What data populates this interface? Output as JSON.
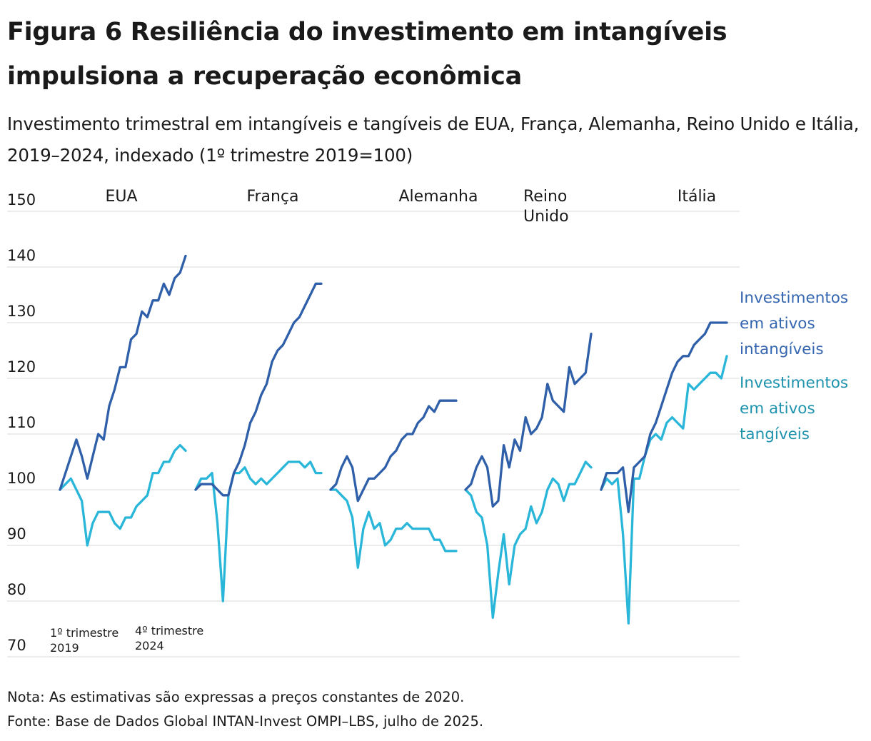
{
  "title": "Figura 6 Resiliência do investimento em intangíveis impulsiona a recuperação econômica",
  "subtitle": "Investimento trimestral em intangíveis e tangíveis de EUA, França, Alemanha, Reino Unido e Itália, 2019–2024, indexado (1º trimestre 2019=100)",
  "notes": {
    "note": "Nota: As estimativas são expressas a preços constantes de 2020.",
    "source": "Fonte: Base de Dados Global INTAN-Invest OMPI–LBS, julho de 2025."
  },
  "colors": {
    "intangible": "#2e5fa8",
    "tangible": "#29b6d9",
    "intangible_label": "#3566b0",
    "tangible_label": "#1f93ae",
    "grid": "#d9d9d9"
  },
  "chart_data": {
    "type": "line",
    "title": "Figura 6 Resiliência do investimento em intangíveis impulsiona a recuperação econômica",
    "ylabel": "",
    "xlabel": "",
    "ylim": [
      70,
      150
    ],
    "yticks": [
      70,
      80,
      90,
      100,
      110,
      120,
      130,
      140,
      150
    ],
    "x_start_label": [
      "1º trimestre",
      "2019"
    ],
    "x_end_label": [
      "4º trimestre",
      "2024"
    ],
    "legend": {
      "intangible": [
        "Investimentos",
        "em ativos",
        "intangíveis"
      ],
      "tangible": [
        "Investimentos",
        "em ativos",
        "tangíveis"
      ]
    },
    "panels": [
      {
        "name": "EUA",
        "label_lines": [
          "EUA"
        ],
        "series": [
          {
            "name": "Investimentos em ativos intangíveis",
            "key": "intangible",
            "values": [
              100,
              103,
              106,
              109,
              106,
              102,
              106,
              110,
              109,
              115,
              118,
              122,
              122,
              127,
              128,
              132,
              131,
              134,
              134,
              137,
              135,
              138,
              139,
              142
            ]
          },
          {
            "name": "Investimentos em ativos tangíveis",
            "key": "tangible",
            "values": [
              100,
              101,
              102,
              100,
              98,
              90,
              94,
              96,
              96,
              96,
              94,
              93,
              95,
              95,
              97,
              98,
              99,
              103,
              103,
              105,
              105,
              107,
              108,
              107
            ]
          }
        ]
      },
      {
        "name": "França",
        "label_lines": [
          "França"
        ],
        "series": [
          {
            "name": "Investimentos em ativos intangíveis",
            "key": "intangible",
            "values": [
              100,
              101,
              101,
              101,
              100,
              99,
              99,
              103,
              105,
              108,
              112,
              114,
              117,
              119,
              123,
              125,
              126,
              128,
              130,
              131,
              133,
              135,
              137,
              137
            ]
          },
          {
            "name": "Investimentos em ativos tangíveis",
            "key": "tangible",
            "values": [
              100,
              102,
              102,
              103,
              94,
              80,
              99,
              103,
              103,
              104,
              102,
              101,
              102,
              101,
              102,
              103,
              104,
              105,
              105,
              105,
              104,
              105,
              103,
              103
            ]
          }
        ]
      },
      {
        "name": "Alemanha",
        "label_lines": [
          "Alemanha"
        ],
        "series": [
          {
            "name": "Investimentos em ativos intangíveis",
            "key": "intangible",
            "values": [
              100,
              101,
              104,
              106,
              104,
              98,
              100,
              102,
              102,
              103,
              104,
              106,
              107,
              109,
              110,
              110,
              112,
              113,
              115,
              114,
              116,
              116,
              116,
              116
            ]
          },
          {
            "name": "Investimentos em ativos tangíveis",
            "key": "tangible",
            "values": [
              100,
              100,
              99,
              98,
              95,
              86,
              93,
              96,
              93,
              94,
              90,
              91,
              93,
              93,
              94,
              93,
              93,
              93,
              93,
              91,
              91,
              89,
              89,
              89
            ]
          }
        ]
      },
      {
        "name": "Reino Unido",
        "label_lines": [
          "Reino",
          "Unido"
        ],
        "series": [
          {
            "name": "Investimentos em ativos intangíveis",
            "key": "intangible",
            "values": [
              100,
              101,
              104,
              106,
              104,
              97,
              98,
              108,
              104,
              109,
              107,
              113,
              110,
              111,
              113,
              119,
              116,
              115,
              114,
              122,
              119,
              120,
              121,
              128
            ]
          },
          {
            "name": "Investimentos em ativos tangíveis",
            "key": "tangible",
            "values": [
              100,
              99,
              96,
              95,
              90,
              77,
              85,
              92,
              83,
              90,
              92,
              93,
              97,
              94,
              96,
              100,
              102,
              101,
              98,
              101,
              101,
              103,
              105,
              104
            ]
          }
        ]
      },
      {
        "name": "Itália",
        "label_lines": [
          "Itália"
        ],
        "series": [
          {
            "name": "Investimentos em ativos intangíveis",
            "key": "intangible",
            "values": [
              100,
              103,
              103,
              103,
              104,
              96,
              104,
              105,
              106,
              110,
              112,
              115,
              118,
              121,
              123,
              124,
              124,
              126,
              127,
              128,
              130,
              130,
              130,
              130
            ]
          },
          {
            "name": "Investimentos em ativos tangíveis",
            "key": "tangible",
            "values": [
              100,
              102,
              101,
              102,
              92,
              76,
              102,
              102,
              106,
              109,
              110,
              109,
              112,
              113,
              112,
              111,
              119,
              118,
              119,
              120,
              121,
              121,
              120,
              124
            ]
          }
        ]
      }
    ]
  }
}
